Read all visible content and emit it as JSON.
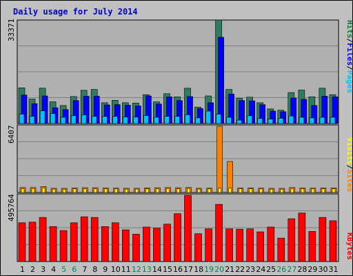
{
  "chart_data": {
    "type": "bar",
    "title": "Daily usage for July 2014",
    "categories": [
      "1",
      "2",
      "3",
      "4",
      "5",
      "6",
      "7",
      "8",
      "9",
      "10",
      "11",
      "12",
      "13",
      "14",
      "15",
      "16",
      "17",
      "18",
      "19",
      "20",
      "21",
      "22",
      "23",
      "24",
      "25",
      "26",
      "27",
      "28",
      "29",
      "30",
      "31"
    ],
    "weekend_days": [
      "5",
      "6",
      "12",
      "13",
      "19",
      "20",
      "26",
      "27"
    ],
    "panels": [
      {
        "id": "hits",
        "ymax_label": "33371",
        "ylim": [
          0,
          33371
        ],
        "legend": [
          "Pages",
          "/",
          "Files",
          "/",
          "Hits"
        ],
        "legend_colors": [
          "#00c0ff",
          "#000000",
          "#0000ff",
          "#000000",
          "#008040"
        ],
        "series": [
          {
            "name": "Hits",
            "color": "#2e7d5e",
            "values": [
              11500,
              7900,
              11400,
              7000,
              5800,
              8700,
              10700,
              11000,
              6700,
              7500,
              6700,
              6600,
              9300,
              7000,
              9600,
              8600,
              11400,
              5300,
              8900,
              33371,
              11000,
              8100,
              8500,
              6700,
              4700,
              4300,
              10000,
              10800,
              8600,
              11400,
              9300
            ]
          },
          {
            "name": "Files",
            "color": "#0000ff",
            "values": [
              9200,
              6400,
              8900,
              5100,
              4500,
              7400,
              8800,
              8800,
              6000,
              6100,
              5900,
              5700,
              8900,
              6300,
              8600,
              7400,
              8700,
              4800,
              6700,
              27800,
              9500,
              7400,
              7300,
              6100,
              4000,
              3800,
              8200,
              7800,
              5800,
              8800,
              8600
            ]
          },
          {
            "name": "Pages",
            "color": "#00c0ff",
            "values": [
              3000,
              2300,
              4100,
              3200,
              2000,
              2500,
              2800,
              2300,
              2300,
              2300,
              2100,
              2100,
              2600,
              2000,
              2300,
              2300,
              2800,
              1800,
              4000,
              3000,
              2000,
              1100,
              2500,
              1600,
              1400,
              1700,
              2400,
              2000,
              1800,
              2000,
              2000
            ]
          }
        ]
      },
      {
        "id": "visits",
        "ymax_label": "6407",
        "ylim": [
          0,
          6407
        ],
        "legend": [
          "Sites",
          "/",
          "Visits"
        ],
        "legend_colors": [
          "#ff8000",
          "#000000",
          "#ffff00"
        ],
        "series": [
          {
            "name": "Visits",
            "color": "#ff8000",
            "values": [
              480,
              480,
              580,
              410,
              400,
              440,
              470,
              470,
              450,
              420,
              410,
              410,
              450,
              460,
              480,
              460,
              490,
              410,
              430,
              6407,
              3000,
              450,
              450,
              430,
              400,
              400,
              480,
              440,
              420,
              450,
              450
            ]
          },
          {
            "name": "Sites",
            "color": "#ffff00",
            "values": [
              360,
              380,
              430,
              330,
              320,
              360,
              370,
              360,
              350,
              340,
              330,
              330,
              360,
              370,
              370,
              360,
              370,
              330,
              340,
              420,
              420,
              360,
              360,
              340,
              320,
              320,
              370,
              350,
              340,
              360,
              360
            ]
          }
        ]
      },
      {
        "id": "kbytes",
        "ymax_label": "495764",
        "ylim": [
          0,
          495764
        ],
        "legend": [
          "KBytes"
        ],
        "legend_colors": [
          "#ff0000"
        ],
        "series": [
          {
            "name": "KBytes",
            "color": "#ff0000",
            "values": [
              290000,
              295000,
              330000,
              262000,
              232000,
              290000,
              335000,
              330000,
              262000,
              290000,
              237000,
              205000,
              258000,
              250000,
              280000,
              358000,
              495764,
              208000,
              245000,
              428000,
              245000,
              242000,
              245000,
              222000,
              258000,
              175000,
              320000,
              363000,
              225000,
              330000,
              305000
            ]
          }
        ]
      }
    ]
  }
}
